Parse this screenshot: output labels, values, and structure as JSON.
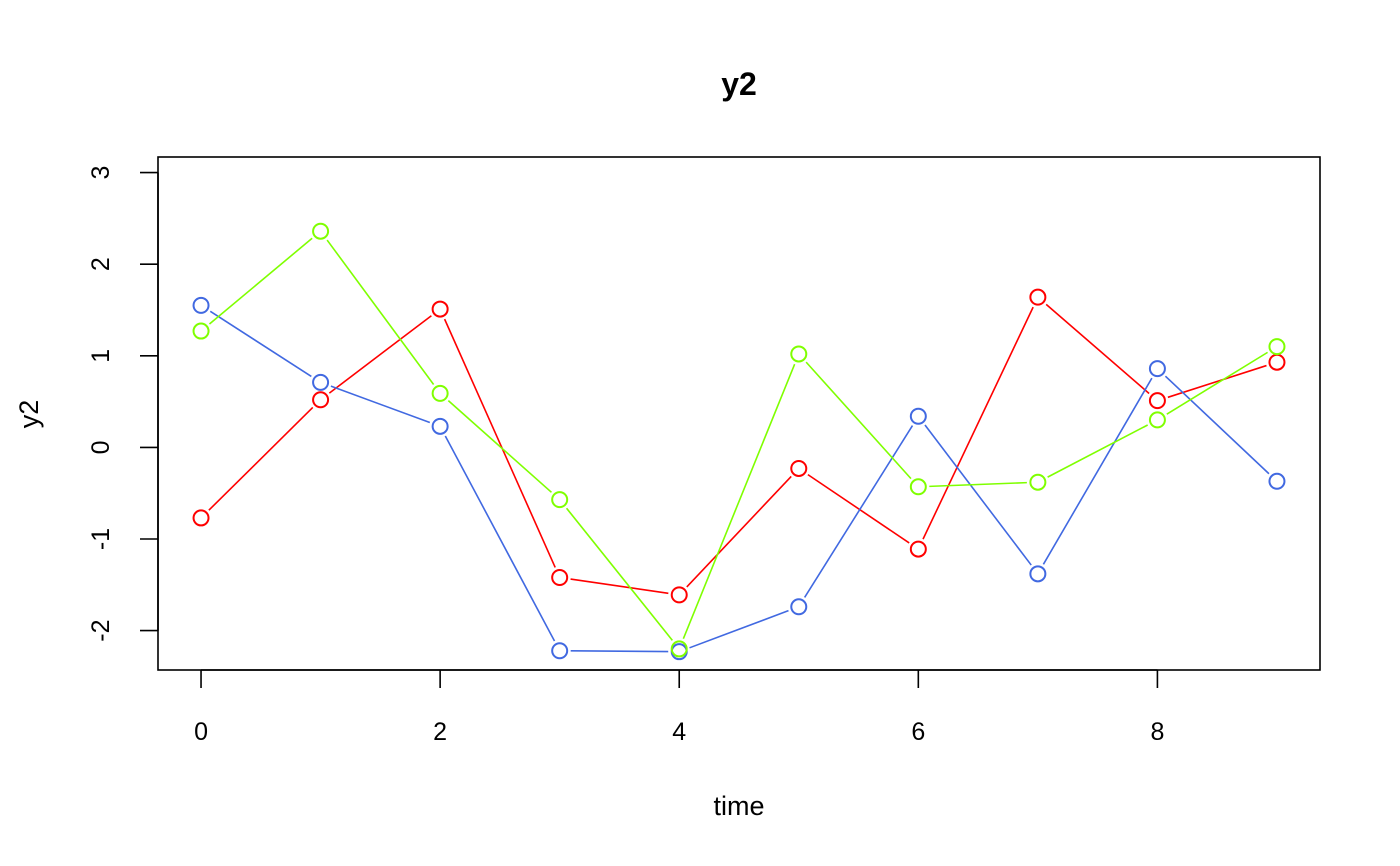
{
  "chart_data": {
    "type": "line",
    "title": "y2",
    "xlabel": "time",
    "ylabel": "y2",
    "xlim": [
      0,
      9
    ],
    "ylim": [
      -2.5,
      3
    ],
    "x_ticks": [
      0,
      2,
      4,
      6,
      8
    ],
    "y_ticks": [
      -2,
      -1,
      0,
      1,
      2,
      3
    ],
    "x_tick_labels": [
      "0",
      "2",
      "4",
      "6",
      "8"
    ],
    "y_tick_labels": [
      "-2",
      "-1",
      "0",
      "1",
      "2",
      "3"
    ],
    "grid": false,
    "legend": "none",
    "marker": "open-circle",
    "x": [
      0,
      1,
      2,
      3,
      4,
      5,
      6,
      7,
      8,
      9
    ],
    "series": [
      {
        "color": "#ff0000",
        "values": [
          -0.77,
          0.52,
          1.51,
          -1.42,
          -1.61,
          -0.23,
          -1.11,
          1.64,
          0.51,
          0.93
        ]
      },
      {
        "color": "#4169e1",
        "values": [
          1.55,
          0.71,
          0.23,
          -2.22,
          -2.23,
          -1.74,
          0.34,
          -1.38,
          0.86,
          -0.37
        ]
      },
      {
        "color": "#7fff00",
        "values": [
          1.27,
          2.36,
          0.59,
          -0.57,
          -2.2,
          1.02,
          -0.43,
          -0.38,
          0.3,
          1.1
        ]
      }
    ]
  }
}
